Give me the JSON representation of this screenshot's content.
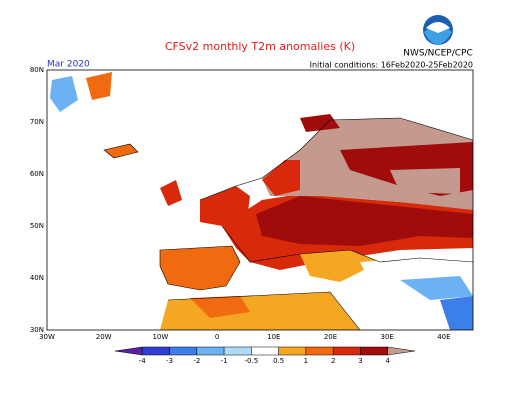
{
  "header": {
    "title": "CFSv2 monthly T2m anomalies (K)",
    "month": "Mar 2020",
    "agency": "NWS/NCEP/CPC",
    "initial": "Initial conditions: 16Feb2020-25Feb2020"
  },
  "map": {
    "lat_labels": [
      "80N",
      "70N",
      "60N",
      "50N",
      "40N",
      "30N"
    ],
    "lon_labels": [
      "30W",
      "20W",
      "10W",
      "0",
      "10E",
      "20E",
      "30E",
      "40E"
    ]
  },
  "colorbar": {
    "ticks": [
      -4,
      -3,
      -2,
      -1,
      -0.5,
      0.5,
      1,
      2,
      3,
      4
    ],
    "colors": [
      "#5a1ea8",
      "#2f3fd2",
      "#3c7fe8",
      "#6cb2f2",
      "#aedcf8",
      "#ffffff",
      "#f5a623",
      "#f26a10",
      "#d82a0a",
      "#a00c0c",
      "#c49a8e"
    ]
  }
}
